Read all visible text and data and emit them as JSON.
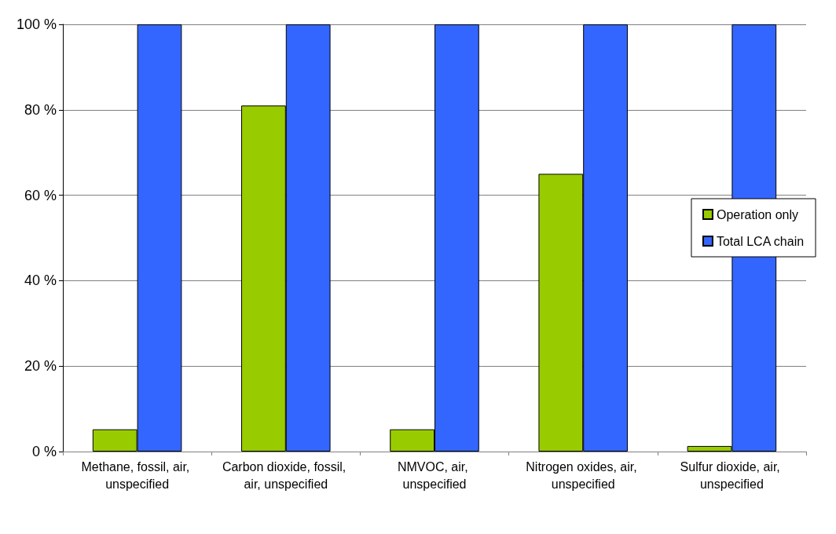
{
  "chart_data": {
    "type": "bar",
    "categories": [
      "Methane, fossil, air, unspecified",
      "Carbon dioxide, fossil, air, unspecified",
      "NMVOC, air, unspecified",
      "Nitrogen oxides, air, unspecified",
      "Sulfur dioxide, air, unspecified"
    ],
    "series": [
      {
        "name": "Operation only",
        "color": "#99cc00",
        "values": [
          5.2,
          81,
          5.2,
          65,
          1.3
        ]
      },
      {
        "name": "Total LCA chain",
        "color": "#3366ff",
        "values": [
          100,
          100,
          100,
          100,
          100
        ]
      }
    ],
    "ylim": [
      0,
      100
    ],
    "yticks": [
      {
        "value": 0,
        "label": "0 %"
      },
      {
        "value": 20,
        "label": "20 %"
      },
      {
        "value": 40,
        "label": "40 %"
      },
      {
        "value": 60,
        "label": "60 %"
      },
      {
        "value": 80,
        "label": "80 %"
      },
      {
        "value": 100,
        "label": "100 %"
      }
    ],
    "grid": "y",
    "legend": "right"
  }
}
